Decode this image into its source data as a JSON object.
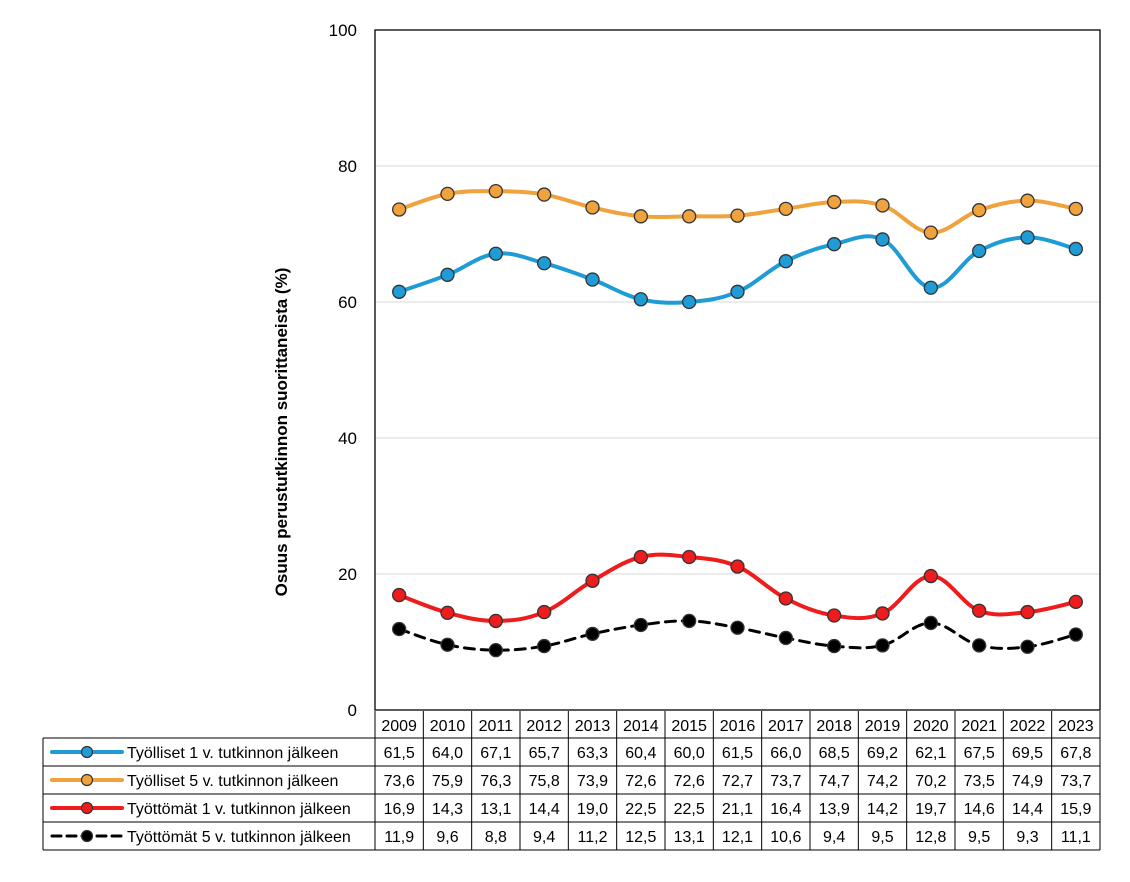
{
  "chart_data": {
    "type": "line",
    "title": "",
    "xlabel": "",
    "ylabel": "Osuus  perustutkinnon suorittaneista (%)",
    "ylim": [
      0,
      100
    ],
    "yticks": [
      0,
      20,
      40,
      60,
      80,
      100
    ],
    "grid": true,
    "legend_placement": "data-table-below",
    "categories": [
      "2009",
      "2010",
      "2011",
      "2012",
      "2013",
      "2014",
      "2015",
      "2016",
      "2017",
      "2018",
      "2019",
      "2020",
      "2021",
      "2022",
      "2023"
    ],
    "series": [
      {
        "name": "Työlliset 1 v. tutkinnon jälkeen",
        "color": "#1f9bd6",
        "dash": false,
        "marker_fill": "#1f9bd6",
        "values": [
          61.5,
          64.0,
          67.1,
          65.7,
          63.3,
          60.4,
          60.0,
          61.5,
          66.0,
          68.5,
          69.2,
          62.1,
          67.5,
          69.5,
          67.8
        ],
        "labels": [
          "61,5",
          "64,0",
          "67,1",
          "65,7",
          "63,3",
          "60,4",
          "60,0",
          "61,5",
          "66,0",
          "68,5",
          "69,2",
          "62,1",
          "67,5",
          "69,5",
          "67,8"
        ]
      },
      {
        "name": "Työlliset 5 v. tutkinnon jälkeen",
        "color": "#f0a23c",
        "dash": false,
        "marker_fill": "#f0a23c",
        "values": [
          73.6,
          75.9,
          76.3,
          75.8,
          73.9,
          72.6,
          72.6,
          72.7,
          73.7,
          74.7,
          74.2,
          70.2,
          73.5,
          74.9,
          73.7
        ],
        "labels": [
          "73,6",
          "75,9",
          "76,3",
          "75,8",
          "73,9",
          "72,6",
          "72,6",
          "72,7",
          "73,7",
          "74,7",
          "74,2",
          "70,2",
          "73,5",
          "74,9",
          "73,7"
        ]
      },
      {
        "name": "Työttömät 1 v. tutkinnon jälkeen",
        "color": "#ee1c1c",
        "dash": false,
        "marker_fill": "#ee1c1c",
        "values": [
          16.9,
          14.3,
          13.1,
          14.4,
          19.0,
          22.5,
          22.5,
          21.1,
          16.4,
          13.9,
          14.2,
          19.7,
          14.6,
          14.4,
          15.9
        ],
        "labels": [
          "16,9",
          "14,3",
          "13,1",
          "14,4",
          "19,0",
          "22,5",
          "22,5",
          "21,1",
          "16,4",
          "13,9",
          "14,2",
          "19,7",
          "14,6",
          "14,4",
          "15,9"
        ]
      },
      {
        "name": "Työttömät 5 v. tutkinnon jälkeen",
        "color": "#000000",
        "dash": true,
        "marker_fill": "#000000",
        "values": [
          11.9,
          9.6,
          8.8,
          9.4,
          11.2,
          12.5,
          13.1,
          12.1,
          10.6,
          9.4,
          9.5,
          12.8,
          9.5,
          9.3,
          11.1
        ],
        "labels": [
          "11,9",
          "9,6",
          "8,8",
          "9,4",
          "11,2",
          "12,5",
          "13,1",
          "12,1",
          "10,6",
          "9,4",
          "9,5",
          "12,8",
          "9,5",
          "9,3",
          "11,1"
        ]
      }
    ]
  }
}
